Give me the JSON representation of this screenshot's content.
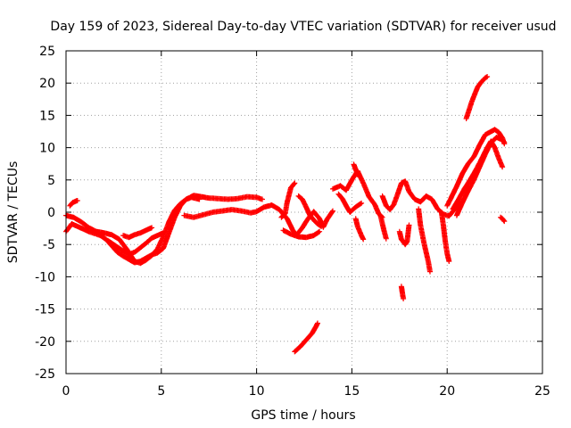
{
  "chart_data": {
    "type": "scatter",
    "title": "Day 159 of 2023, Sidereal Day-to-day VTEC variation (SDTVAR) for receiver usud",
    "xlabel": "GPS time / hours",
    "ylabel": "SDTVAR / TECUs",
    "xlim": [
      0,
      25
    ],
    "ylim": [
      -25,
      25
    ],
    "xticks": [
      0,
      5,
      10,
      15,
      20,
      25
    ],
    "yticks": [
      -25,
      -20,
      -15,
      -10,
      -5,
      0,
      5,
      10,
      15,
      20,
      25
    ],
    "grid": true,
    "grid_style": "dotted",
    "marker": "+",
    "series": [
      {
        "name": "SDTVAR",
        "color": "#ff0000",
        "segments": [
          [
            [
              0.0,
              -3.0
            ],
            [
              0.3,
              -1.8
            ],
            [
              0.6,
              -2.2
            ],
            [
              0.9,
              -2.6
            ],
            [
              1.2,
              -3.0
            ],
            [
              1.5,
              -3.3
            ],
            [
              1.8,
              -3.6
            ],
            [
              2.1,
              -4.2
            ],
            [
              2.4,
              -5.2
            ],
            [
              2.7,
              -6.2
            ],
            [
              3.0,
              -6.8
            ],
            [
              3.3,
              -7.3
            ],
            [
              3.6,
              -7.8
            ],
            [
              3.9,
              -7.6
            ],
            [
              4.2,
              -7.1
            ],
            [
              4.5,
              -6.6
            ],
            [
              4.8,
              -6.3
            ],
            [
              5.1,
              -5.6
            ],
            [
              5.4,
              -3.2
            ],
            [
              5.7,
              -0.8
            ],
            [
              6.0,
              1.0
            ],
            [
              6.3,
              2.0
            ],
            [
              6.6,
              2.3
            ],
            [
              7.0,
              2.0
            ]
          ],
          [
            [
              0.0,
              -0.5
            ],
            [
              0.4,
              -0.8
            ],
            [
              0.8,
              -1.5
            ],
            [
              1.2,
              -2.4
            ],
            [
              1.6,
              -3.0
            ],
            [
              2.0,
              -3.2
            ],
            [
              2.4,
              -3.5
            ],
            [
              2.8,
              -4.2
            ],
            [
              3.2,
              -5.8
            ],
            [
              3.6,
              -7.6
            ],
            [
              3.9,
              -7.9
            ],
            [
              4.2,
              -7.4
            ],
            [
              4.5,
              -6.7
            ],
            [
              4.8,
              -5.7
            ],
            [
              5.1,
              -3.8
            ],
            [
              5.4,
              -1.5
            ],
            [
              5.7,
              0.3
            ],
            [
              6.0,
              1.3
            ],
            [
              6.3,
              2.0
            ],
            [
              6.7,
              2.6
            ],
            [
              7.1,
              2.4
            ],
            [
              7.5,
              2.2
            ],
            [
              8.0,
              2.1
            ],
            [
              8.5,
              2.0
            ],
            [
              9.0,
              2.1
            ],
            [
              9.5,
              2.4
            ],
            [
              10.0,
              2.3
            ],
            [
              10.3,
              2.0
            ]
          ],
          [
            [
              2.2,
              -4.4
            ],
            [
              2.6,
              -5.2
            ],
            [
              3.0,
              -6.0
            ],
            [
              3.3,
              -6.5
            ],
            [
              3.6,
              -6.2
            ],
            [
              3.9,
              -5.5
            ],
            [
              4.2,
              -4.8
            ],
            [
              4.5,
              -4.0
            ],
            [
              4.8,
              -3.6
            ],
            [
              5.1,
              -3.2
            ]
          ],
          [
            [
              3.0,
              -3.6
            ],
            [
              3.3,
              -3.9
            ],
            [
              3.6,
              -3.5
            ],
            [
              3.9,
              -3.2
            ],
            [
              4.2,
              -2.8
            ],
            [
              4.5,
              -2.4
            ]
          ],
          [
            [
              0.2,
              1.0
            ],
            [
              0.35,
              1.5
            ],
            [
              0.5,
              1.7
            ],
            [
              0.6,
              1.8
            ]
          ],
          [
            [
              6.2,
              -0.5
            ],
            [
              6.7,
              -0.8
            ],
            [
              7.2,
              -0.4
            ],
            [
              7.7,
              0.0
            ],
            [
              8.2,
              0.2
            ],
            [
              8.7,
              0.4
            ],
            [
              9.2,
              0.2
            ],
            [
              9.7,
              -0.1
            ],
            [
              10.0,
              0.1
            ],
            [
              10.4,
              0.8
            ],
            [
              10.8,
              1.1
            ],
            [
              11.2,
              0.4
            ],
            [
              11.6,
              -1.0
            ],
            [
              11.9,
              -2.8
            ],
            [
              12.1,
              -3.5
            ],
            [
              12.4,
              -2.4
            ],
            [
              12.7,
              -1.0
            ],
            [
              13.0,
              0.1
            ],
            [
              13.3,
              -1.0
            ],
            [
              13.5,
              -2.3
            ],
            [
              13.7,
              -1.1
            ],
            [
              14.0,
              0.2
            ]
          ],
          [
            [
              11.4,
              -2.8
            ],
            [
              11.8,
              -3.4
            ],
            [
              12.2,
              -3.8
            ],
            [
              12.6,
              -3.9
            ],
            [
              13.0,
              -3.6
            ],
            [
              13.3,
              -3.0
            ]
          ],
          [
            [
              12.2,
              2.5
            ],
            [
              12.4,
              2.0
            ],
            [
              12.6,
              0.8
            ],
            [
              12.8,
              -0.5
            ],
            [
              13.0,
              -1.2
            ],
            [
              13.2,
              -1.8
            ],
            [
              13.4,
              -2.2
            ]
          ],
          [
            [
              11.3,
              -0.8
            ],
            [
              11.5,
              -0.2
            ],
            [
              11.6,
              1.5
            ],
            [
              11.8,
              3.8
            ],
            [
              12.0,
              4.5
            ]
          ],
          [
            [
              14.0,
              3.6
            ],
            [
              14.4,
              4.1
            ],
            [
              14.7,
              3.4
            ],
            [
              15.0,
              5.0
            ],
            [
              15.3,
              6.4
            ],
            [
              15.6,
              4.5
            ],
            [
              15.9,
              2.4
            ],
            [
              16.2,
              1.2
            ],
            [
              16.4,
              -0.2
            ],
            [
              16.6,
              -0.8
            ]
          ],
          [
            [
              14.3,
              2.8
            ],
            [
              14.5,
              2.1
            ],
            [
              14.7,
              1.0
            ],
            [
              14.9,
              0.0
            ],
            [
              15.2,
              0.8
            ],
            [
              15.5,
              1.4
            ]
          ],
          [
            [
              15.1,
              7.4
            ],
            [
              15.2,
              6.6
            ],
            [
              15.3,
              6.0
            ],
            [
              15.4,
              5.5
            ]
          ],
          [
            [
              15.2,
              -1.0
            ],
            [
              15.3,
              -2.2
            ],
            [
              15.5,
              -3.6
            ],
            [
              15.6,
              -4.2
            ]
          ],
          [
            [
              16.6,
              2.5
            ],
            [
              16.8,
              1.0
            ],
            [
              17.0,
              0.4
            ],
            [
              17.2,
              1.2
            ],
            [
              17.4,
              2.8
            ],
            [
              17.6,
              4.5
            ],
            [
              17.8,
              4.8
            ],
            [
              18.0,
              3.2
            ],
            [
              18.3,
              2.0
            ],
            [
              18.6,
              1.6
            ],
            [
              18.9,
              2.5
            ],
            [
              19.2,
              2.0
            ],
            [
              19.5,
              0.5
            ],
            [
              19.8,
              -0.3
            ],
            [
              20.1,
              -0.6
            ],
            [
              20.4,
              0.5
            ],
            [
              20.7,
              1.5
            ]
          ],
          [
            [
              16.5,
              -0.5
            ],
            [
              16.6,
              -1.8
            ],
            [
              16.7,
              -3.0
            ],
            [
              16.8,
              -4.1
            ]
          ],
          [
            [
              17.5,
              -3.0
            ],
            [
              17.6,
              -4.2
            ],
            [
              17.8,
              -5.0
            ],
            [
              17.9,
              -4.5
            ],
            [
              18.0,
              -2.0
            ]
          ],
          [
            [
              17.6,
              -11.5
            ],
            [
              17.65,
              -12.5
            ],
            [
              17.7,
              -13.4
            ]
          ],
          [
            [
              18.5,
              0.5
            ],
            [
              18.6,
              -2.0
            ],
            [
              18.8,
              -5.0
            ],
            [
              19.0,
              -7.5
            ],
            [
              19.1,
              -9.2
            ]
          ],
          [
            [
              19.7,
              0.0
            ],
            [
              19.8,
              -2.0
            ],
            [
              19.9,
              -4.5
            ],
            [
              20.0,
              -6.4
            ],
            [
              20.1,
              -7.6
            ]
          ],
          [
            [
              20.0,
              1.0
            ],
            [
              20.2,
              2.2
            ],
            [
              20.5,
              4.0
            ],
            [
              20.8,
              6.0
            ],
            [
              21.1,
              7.5
            ],
            [
              21.4,
              8.6
            ],
            [
              21.7,
              10.4
            ],
            [
              22.0,
              12.0
            ],
            [
              22.3,
              12.5
            ],
            [
              22.5,
              12.8
            ],
            [
              22.7,
              12.4
            ],
            [
              22.9,
              11.5
            ],
            [
              23.0,
              10.6
            ]
          ],
          [
            [
              20.3,
              0.5
            ],
            [
              20.6,
              2.0
            ],
            [
              20.9,
              3.6
            ],
            [
              21.2,
              5.0
            ],
            [
              21.5,
              6.5
            ],
            [
              21.8,
              8.2
            ],
            [
              22.1,
              10.0
            ],
            [
              22.3,
              11.0
            ],
            [
              22.5,
              10.0
            ],
            [
              22.7,
              8.4
            ],
            [
              22.9,
              7.0
            ]
          ],
          [
            [
              20.5,
              -0.5
            ],
            [
              20.8,
              1.5
            ],
            [
              21.1,
              3.3
            ],
            [
              21.4,
              5.0
            ],
            [
              21.7,
              7.0
            ],
            [
              22.0,
              9.0
            ],
            [
              22.3,
              10.8
            ],
            [
              22.6,
              11.6
            ],
            [
              22.9,
              11.2
            ],
            [
              23.0,
              10.8
            ]
          ],
          [
            [
              21.0,
              14.5
            ],
            [
              21.3,
              17.2
            ],
            [
              21.6,
              19.4
            ],
            [
              21.8,
              20.2
            ],
            [
              22.0,
              20.8
            ],
            [
              22.1,
              21.0
            ]
          ],
          [
            [
              22.8,
              -0.8
            ],
            [
              22.9,
              -1.0
            ],
            [
              23.0,
              -1.4
            ]
          ],
          [
            [
              12.0,
              -21.6
            ],
            [
              12.3,
              -20.8
            ],
            [
              12.6,
              -19.8
            ],
            [
              12.9,
              -18.8
            ],
            [
              13.1,
              -17.8
            ],
            [
              13.2,
              -17.2
            ]
          ]
        ]
      }
    ]
  }
}
